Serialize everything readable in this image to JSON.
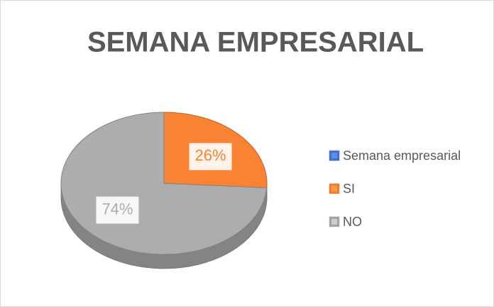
{
  "chart_data": {
    "type": "pie",
    "title": "SEMANA EMPRESARIAL",
    "categories": [
      "Semana empresarial",
      "SI",
      "NO"
    ],
    "values": [
      null,
      26,
      74
    ],
    "value_labels": [
      null,
      "26%",
      "74%"
    ],
    "colors": [
      "#4472c4",
      "#ed7d31",
      "#a5a5a5"
    ],
    "legend": "right"
  }
}
